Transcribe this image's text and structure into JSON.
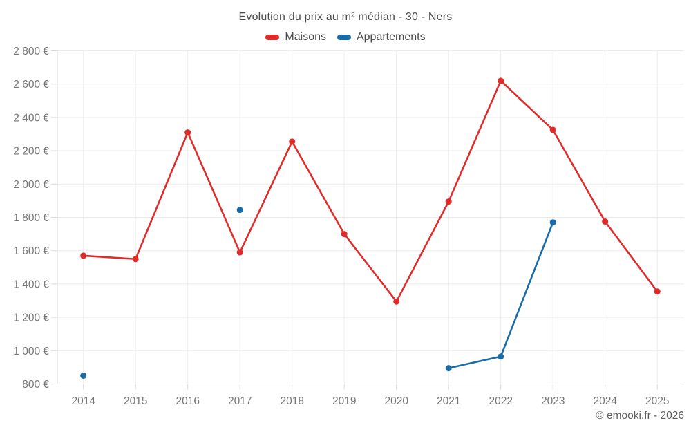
{
  "header": {
    "title": "Evolution du prix au m² médian - 30 - Ners"
  },
  "legend": {
    "items": [
      {
        "label": "Maisons",
        "color": "#e02b2b"
      },
      {
        "label": "Appartements",
        "color": "#1a6ca6"
      }
    ]
  },
  "footer": {
    "credit": "© emooki.fr - 2026"
  },
  "chart_data": {
    "type": "line",
    "title": "Evolution du prix au m² médian - 30 - Ners",
    "x": [
      2014,
      2015,
      2016,
      2017,
      2018,
      2019,
      2020,
      2021,
      2022,
      2023,
      2024,
      2025
    ],
    "ylim": [
      800,
      2800
    ],
    "ytick_step": 200,
    "ytick_labels": [
      "800 €",
      "1 000 €",
      "1 200 €",
      "1 400 €",
      "1 600 €",
      "1 800 €",
      "2 000 €",
      "2 200 €",
      "2 400 €",
      "2 600 €",
      "2 800 €"
    ],
    "grid": true,
    "legend_position": "top",
    "series": [
      {
        "name": "Maisons",
        "color": "#e02b2b",
        "points": [
          {
            "year": 2014,
            "value": 1570
          },
          {
            "year": 2015,
            "value": 1550
          },
          {
            "year": 2016,
            "value": 2310
          },
          {
            "year": 2017,
            "value": 1590
          },
          {
            "year": 2018,
            "value": 2255
          },
          {
            "year": 2019,
            "value": 1700
          },
          {
            "year": 2020,
            "value": 1295
          },
          {
            "year": 2021,
            "value": 1895
          },
          {
            "year": 2022,
            "value": 2620
          },
          {
            "year": 2023,
            "value": 2325
          },
          {
            "year": 2024,
            "value": 1775
          },
          {
            "year": 2025,
            "value": 1355
          }
        ]
      },
      {
        "name": "Appartements",
        "color": "#1a6ca6",
        "points": [
          {
            "year": 2014,
            "value": 850
          },
          {
            "year": 2017,
            "value": 1845
          },
          {
            "year": 2021,
            "value": 895
          },
          {
            "year": 2022,
            "value": 965
          },
          {
            "year": 2023,
            "value": 1770
          }
        ]
      }
    ]
  }
}
